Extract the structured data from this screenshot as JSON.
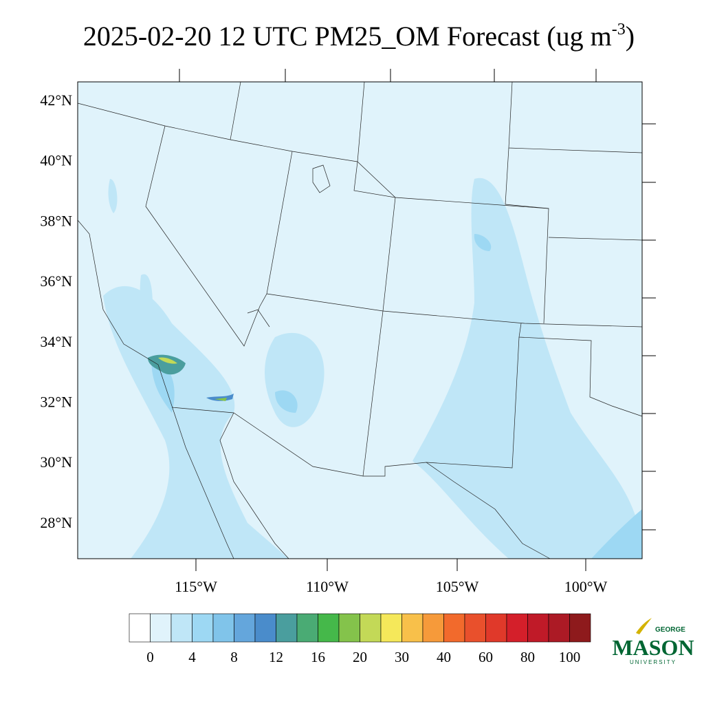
{
  "header": {
    "title": "2025-02-20 12 UTC PM25_OM Forecast (ug m",
    "title_superscript": "-3",
    "title_end": ")"
  },
  "map": {
    "lat_labels": [
      "42°N",
      "40°N",
      "38°N",
      "36°N",
      "34°N",
      "32°N",
      "30°N",
      "28°N"
    ],
    "lon_labels": [
      "115°W",
      "110°W",
      "105°W",
      "100°W"
    ]
  },
  "colorbar": {
    "colors": [
      "#ffffff",
      "#e0f3fb",
      "#bfe6f7",
      "#9dd8f3",
      "#80c4ea",
      "#64a6dc",
      "#4a8ccb",
      "#4a9e9e",
      "#4aab74",
      "#45b84a",
      "#84c34b",
      "#c3d957",
      "#f5e85a",
      "#f8c04a",
      "#f69a3a",
      "#f26a2c",
      "#e9502c",
      "#e0392a",
      "#d41f2a",
      "#c01a28",
      "#ac1a25",
      "#8e1a1c"
    ],
    "labels": [
      0,
      4,
      8,
      12,
      16,
      20,
      30,
      40,
      60,
      80,
      100
    ]
  },
  "logo": {
    "top": "GEORGE",
    "main": "MASON",
    "bottom": "UNIVERSITY"
  }
}
